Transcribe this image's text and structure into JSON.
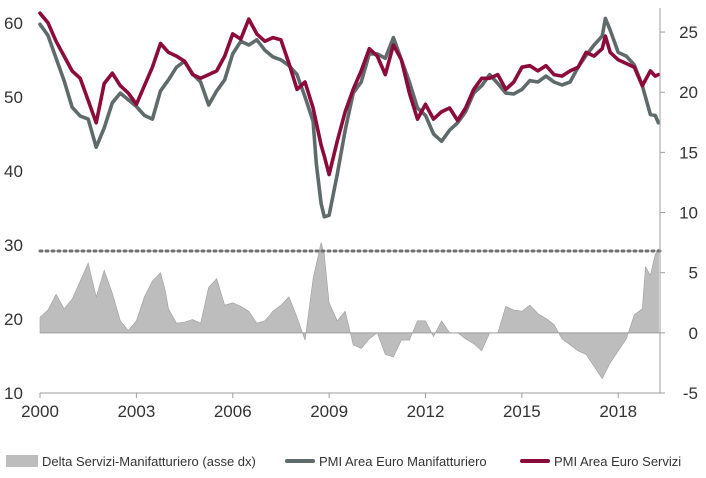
{
  "chart_data": {
    "type": "line",
    "title": "",
    "xlabel": "",
    "ylabel": "",
    "ylabel_right": "",
    "x_range": [
      2000,
      2019.3
    ],
    "x_ticks": [
      2000,
      2003,
      2006,
      2009,
      2012,
      2015,
      2018
    ],
    "ylim": [
      10,
      62
    ],
    "y_ticks": [
      10,
      20,
      30,
      40,
      50,
      60
    ],
    "ylim_right": [
      -5,
      27
    ],
    "y_ticks_right": [
      -5,
      0,
      5,
      10,
      15,
      20,
      25
    ],
    "reference_line": {
      "axis": "right",
      "value": 6.8,
      "style": "dotted"
    },
    "legend_position": "bottom",
    "grid": false,
    "series": [
      {
        "name": "Delta Servizi-Manifatturiero (asse dx)",
        "axis": "right",
        "kind": "area",
        "color": "#bdbdbd",
        "points": [
          [
            2000.0,
            1.3
          ],
          [
            2000.25,
            1.9
          ],
          [
            2000.5,
            3.2
          ],
          [
            2000.75,
            2.0
          ],
          [
            2001.0,
            2.8
          ],
          [
            2001.25,
            4.3
          ],
          [
            2001.5,
            5.8
          ],
          [
            2001.75,
            3.0
          ],
          [
            2002.0,
            5.2
          ],
          [
            2002.25,
            3.3
          ],
          [
            2002.5,
            1.0
          ],
          [
            2002.75,
            0.2
          ],
          [
            2003.0,
            1.0
          ],
          [
            2003.25,
            3.0
          ],
          [
            2003.5,
            4.3
          ],
          [
            2003.75,
            5.0
          ],
          [
            2003.9,
            3.5
          ],
          [
            2004.0,
            2.0
          ],
          [
            2004.25,
            0.8
          ],
          [
            2004.5,
            0.9
          ],
          [
            2004.75,
            1.1
          ],
          [
            2005.0,
            0.8
          ],
          [
            2005.25,
            3.8
          ],
          [
            2005.5,
            4.5
          ],
          [
            2005.75,
            2.3
          ],
          [
            2006.0,
            2.5
          ],
          [
            2006.25,
            2.2
          ],
          [
            2006.5,
            1.8
          ],
          [
            2006.75,
            0.8
          ],
          [
            2007.0,
            1.0
          ],
          [
            2007.25,
            1.8
          ],
          [
            2007.5,
            2.3
          ],
          [
            2007.75,
            3.0
          ],
          [
            2008.0,
            1.3
          ],
          [
            2008.25,
            -0.6
          ],
          [
            2008.5,
            4.5
          ],
          [
            2008.75,
            7.5
          ],
          [
            2008.85,
            6.5
          ],
          [
            2009.0,
            2.5
          ],
          [
            2009.25,
            1.0
          ],
          [
            2009.5,
            1.8
          ],
          [
            2009.75,
            -1.0
          ],
          [
            2010.0,
            -1.3
          ],
          [
            2010.25,
            -0.5
          ],
          [
            2010.5,
            0.0
          ],
          [
            2010.75,
            -1.8
          ],
          [
            2011.0,
            -2.0
          ],
          [
            2011.25,
            -0.6
          ],
          [
            2011.5,
            -0.6
          ],
          [
            2011.75,
            1.0
          ],
          [
            2012.0,
            1.0
          ],
          [
            2012.25,
            -0.3
          ],
          [
            2012.5,
            1.0
          ],
          [
            2012.75,
            0.0
          ],
          [
            2013.0,
            0.0
          ],
          [
            2013.25,
            -0.5
          ],
          [
            2013.5,
            -0.9
          ],
          [
            2013.75,
            -1.5
          ],
          [
            2014.0,
            0.0
          ],
          [
            2014.25,
            0.0
          ],
          [
            2014.5,
            2.2
          ],
          [
            2014.75,
            1.9
          ],
          [
            2015.0,
            1.8
          ],
          [
            2015.25,
            2.3
          ],
          [
            2015.5,
            1.6
          ],
          [
            2015.75,
            1.2
          ],
          [
            2016.0,
            0.7
          ],
          [
            2016.25,
            -0.5
          ],
          [
            2016.5,
            -1.0
          ],
          [
            2016.75,
            -1.5
          ],
          [
            2017.0,
            -1.8
          ],
          [
            2017.25,
            -2.8
          ],
          [
            2017.5,
            -3.8
          ],
          [
            2017.75,
            -2.5
          ],
          [
            2018.0,
            -1.5
          ],
          [
            2018.25,
            -0.5
          ],
          [
            2018.5,
            1.5
          ],
          [
            2018.75,
            2.0
          ],
          [
            2018.85,
            5.5
          ],
          [
            2019.0,
            4.8
          ],
          [
            2019.15,
            6.5
          ],
          [
            2019.25,
            7.0
          ]
        ]
      },
      {
        "name": "PMI Area Euro Manifatturiero",
        "axis": "left",
        "kind": "line",
        "color": "#5f6b6a",
        "points": [
          [
            2000.0,
            59.8
          ],
          [
            2000.25,
            58.3
          ],
          [
            2000.5,
            55.2
          ],
          [
            2000.75,
            52.2
          ],
          [
            2001.0,
            48.6
          ],
          [
            2001.25,
            47.4
          ],
          [
            2001.5,
            47.0
          ],
          [
            2001.75,
            43.2
          ],
          [
            2002.0,
            45.8
          ],
          [
            2002.25,
            49.2
          ],
          [
            2002.5,
            50.5
          ],
          [
            2002.75,
            49.6
          ],
          [
            2003.0,
            48.7
          ],
          [
            2003.25,
            47.5
          ],
          [
            2003.5,
            47.0
          ],
          [
            2003.75,
            50.8
          ],
          [
            2004.0,
            52.3
          ],
          [
            2004.25,
            54.0
          ],
          [
            2004.5,
            54.8
          ],
          [
            2004.75,
            53.1
          ],
          [
            2005.0,
            52.0
          ],
          [
            2005.25,
            48.9
          ],
          [
            2005.5,
            50.8
          ],
          [
            2005.75,
            52.3
          ],
          [
            2006.0,
            55.8
          ],
          [
            2006.25,
            57.5
          ],
          [
            2006.5,
            57.0
          ],
          [
            2006.75,
            57.7
          ],
          [
            2007.0,
            56.3
          ],
          [
            2007.25,
            55.4
          ],
          [
            2007.5,
            55.0
          ],
          [
            2007.75,
            54.2
          ],
          [
            2008.0,
            53.0
          ],
          [
            2008.25,
            50.0
          ],
          [
            2008.5,
            46.7
          ],
          [
            2008.6,
            41.0
          ],
          [
            2008.75,
            35.6
          ],
          [
            2008.85,
            33.8
          ],
          [
            2009.0,
            34.0
          ],
          [
            2009.25,
            39.5
          ],
          [
            2009.5,
            45.5
          ],
          [
            2009.75,
            50.5
          ],
          [
            2010.0,
            52.0
          ],
          [
            2010.25,
            55.8
          ],
          [
            2010.5,
            55.8
          ],
          [
            2010.75,
            55.2
          ],
          [
            2011.0,
            58.0
          ],
          [
            2011.25,
            55.0
          ],
          [
            2011.5,
            52.0
          ],
          [
            2011.75,
            48.5
          ],
          [
            2012.0,
            47.5
          ],
          [
            2012.25,
            45.0
          ],
          [
            2012.5,
            44.0
          ],
          [
            2012.75,
            45.5
          ],
          [
            2013.0,
            46.5
          ],
          [
            2013.25,
            48.0
          ],
          [
            2013.5,
            50.5
          ],
          [
            2013.75,
            51.5
          ],
          [
            2014.0,
            53.0
          ],
          [
            2014.25,
            51.8
          ],
          [
            2014.5,
            50.5
          ],
          [
            2014.75,
            50.4
          ],
          [
            2015.0,
            51.0
          ],
          [
            2015.25,
            52.2
          ],
          [
            2015.5,
            52.0
          ],
          [
            2015.75,
            52.8
          ],
          [
            2016.0,
            52.0
          ],
          [
            2016.25,
            51.6
          ],
          [
            2016.5,
            52.0
          ],
          [
            2016.75,
            54.0
          ],
          [
            2017.0,
            55.6
          ],
          [
            2017.25,
            57.0
          ],
          [
            2017.5,
            58.2
          ],
          [
            2017.6,
            60.6
          ],
          [
            2017.75,
            59.0
          ],
          [
            2018.0,
            56.0
          ],
          [
            2018.25,
            55.5
          ],
          [
            2018.5,
            54.3
          ],
          [
            2018.75,
            51.5
          ],
          [
            2019.0,
            47.6
          ],
          [
            2019.15,
            47.5
          ],
          [
            2019.25,
            46.5
          ]
        ]
      },
      {
        "name": "PMI Area Euro Servizi",
        "axis": "left",
        "kind": "line",
        "color": "#8b0b3b",
        "points": [
          [
            2000.0,
            61.3
          ],
          [
            2000.25,
            60.0
          ],
          [
            2000.5,
            57.5
          ],
          [
            2000.75,
            55.5
          ],
          [
            2001.0,
            53.5
          ],
          [
            2001.25,
            52.5
          ],
          [
            2001.5,
            49.5
          ],
          [
            2001.75,
            46.5
          ],
          [
            2002.0,
            51.8
          ],
          [
            2002.25,
            53.2
          ],
          [
            2002.5,
            51.5
          ],
          [
            2002.75,
            50.5
          ],
          [
            2003.0,
            49.0
          ],
          [
            2003.25,
            51.5
          ],
          [
            2003.5,
            54.0
          ],
          [
            2003.75,
            57.2
          ],
          [
            2004.0,
            56.0
          ],
          [
            2004.25,
            55.5
          ],
          [
            2004.5,
            54.8
          ],
          [
            2004.75,
            53.0
          ],
          [
            2005.0,
            52.5
          ],
          [
            2005.25,
            53.0
          ],
          [
            2005.5,
            53.5
          ],
          [
            2005.75,
            55.5
          ],
          [
            2006.0,
            58.5
          ],
          [
            2006.25,
            57.8
          ],
          [
            2006.5,
            60.5
          ],
          [
            2006.75,
            58.5
          ],
          [
            2007.0,
            57.5
          ],
          [
            2007.25,
            58.0
          ],
          [
            2007.5,
            57.7
          ],
          [
            2007.75,
            54.5
          ],
          [
            2008.0,
            51.0
          ],
          [
            2008.25,
            52.0
          ],
          [
            2008.5,
            48.5
          ],
          [
            2008.75,
            43.5
          ],
          [
            2008.85,
            42.0
          ],
          [
            2009.0,
            39.5
          ],
          [
            2009.25,
            44.0
          ],
          [
            2009.5,
            48.0
          ],
          [
            2009.75,
            51.0
          ],
          [
            2010.0,
            53.5
          ],
          [
            2010.25,
            56.5
          ],
          [
            2010.5,
            55.5
          ],
          [
            2010.75,
            53.0
          ],
          [
            2011.0,
            57.0
          ],
          [
            2011.25,
            55.0
          ],
          [
            2011.5,
            50.5
          ],
          [
            2011.75,
            47.0
          ],
          [
            2012.0,
            49.0
          ],
          [
            2012.25,
            47.0
          ],
          [
            2012.5,
            48.0
          ],
          [
            2012.75,
            48.5
          ],
          [
            2013.0,
            46.8
          ],
          [
            2013.25,
            48.5
          ],
          [
            2013.5,
            51.0
          ],
          [
            2013.75,
            52.5
          ],
          [
            2014.0,
            52.5
          ],
          [
            2014.25,
            53.0
          ],
          [
            2014.5,
            51.0
          ],
          [
            2014.75,
            52.0
          ],
          [
            2015.0,
            54.0
          ],
          [
            2015.25,
            54.2
          ],
          [
            2015.5,
            53.5
          ],
          [
            2015.75,
            54.2
          ],
          [
            2016.0,
            53.0
          ],
          [
            2016.25,
            52.8
          ],
          [
            2016.5,
            53.5
          ],
          [
            2016.75,
            54.0
          ],
          [
            2017.0,
            56.0
          ],
          [
            2017.25,
            55.5
          ],
          [
            2017.5,
            56.5
          ],
          [
            2017.6,
            58.2
          ],
          [
            2017.75,
            56.0
          ],
          [
            2018.0,
            55.0
          ],
          [
            2018.25,
            54.5
          ],
          [
            2018.5,
            54.0
          ],
          [
            2018.75,
            51.5
          ],
          [
            2019.0,
            53.5
          ],
          [
            2019.15,
            52.8
          ],
          [
            2019.25,
            53.0
          ]
        ]
      }
    ]
  }
}
